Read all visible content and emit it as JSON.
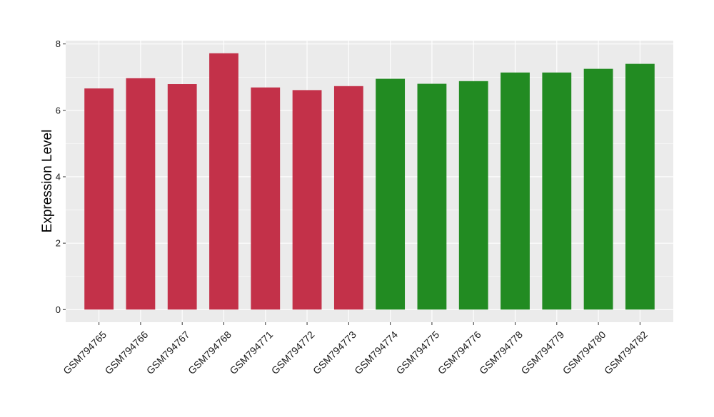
{
  "chart_data": {
    "type": "bar",
    "ylabel": "Expression Level",
    "categories": [
      "GSM794765",
      "GSM794766",
      "GSM794767",
      "GSM794768",
      "GSM794771",
      "GSM794772",
      "GSM794773",
      "GSM794774",
      "GSM794775",
      "GSM794776",
      "GSM794778",
      "GSM794779",
      "GSM794780",
      "GSM794782"
    ],
    "values": [
      6.66,
      6.97,
      6.79,
      7.72,
      6.69,
      6.61,
      6.73,
      6.95,
      6.8,
      6.88,
      7.14,
      7.14,
      7.25,
      7.4
    ],
    "group_colors": [
      "#c33149",
      "#c33149",
      "#c33149",
      "#c33149",
      "#c33149",
      "#c33149",
      "#c33149",
      "#228b22",
      "#228b22",
      "#228b22",
      "#228b22",
      "#228b22",
      "#228b22",
      "#228b22"
    ],
    "y_ticks": [
      "0",
      "2",
      "4",
      "6",
      "8"
    ],
    "ylim": [
      -0.38,
      8.1
    ],
    "grid": true,
    "panel_background": "#ebebeb",
    "grid_color": "#ffffff"
  }
}
